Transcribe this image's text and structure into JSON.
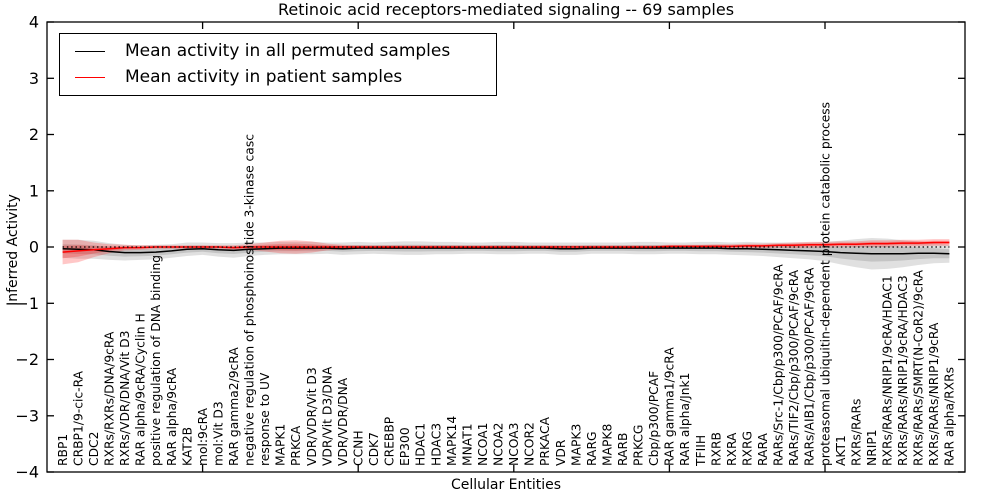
{
  "figure": {
    "title": "Retinoic acid receptors-mediated signaling -- 69 samples",
    "xlabel": "Cellular Entities",
    "ylabel": "Inferred Activity",
    "legend": [
      {
        "label": "Mean activity in all permuted samples",
        "color": "#000000"
      },
      {
        "label": "Mean activity in patient samples",
        "color": "#ff0000"
      }
    ]
  },
  "chart_data": {
    "type": "line",
    "title": "Retinoic acid receptors-mediated signaling -- 69 samples",
    "xlabel": "Cellular Entities",
    "ylabel": "Inferred Activity",
    "ylim": [
      -4,
      4
    ],
    "yticks": [
      -4,
      -3,
      -2,
      -1,
      0,
      1,
      2,
      3,
      4
    ],
    "xlim": [
      0,
      59
    ],
    "xticks": [
      10,
      20,
      30,
      40,
      50
    ],
    "grid": false,
    "legend_position": "upper left",
    "zero_line": {
      "y": 0,
      "style": "dotted",
      "color": "#000000"
    },
    "categories": [
      "RBP1",
      "CRBP1/9-cic-RA",
      "CDC2",
      "RXRs/RXRs/DNA/9cRA",
      "RXRs/VDR/DNA/Vit D3",
      "RAR alpha/9cRA/Cyclin H",
      "positive regulation of DNA binding",
      "RAR alpha/9cRA",
      "KAT2B",
      "mol:9cRA",
      "mol:Vit D3",
      "RAR gamma2/9cRA",
      "negative regulation of phosphoinositide 3-kinase casc",
      "response to UV",
      "MAPK1",
      "PRKCA",
      "VDR/VDR/Vit D3",
      "VDR/Vit D3/DNA",
      "VDR/VDR/DNA",
      "CCNH",
      "CDK7",
      "CREBBP",
      "EP300",
      "HDAC1",
      "HDAC3",
      "MAPK14",
      "MNAT1",
      "NCOA1",
      "NCOA2",
      "NCOA3",
      "NCOR2",
      "PRKACA",
      "VDR",
      "MAPK3",
      "RARG",
      "MAPK8",
      "RARB",
      "PRKCG",
      "Cbp/p300/PCAF",
      "RAR gamma1/9cRA",
      "RAR alpha/Jnk1",
      "TFIIH",
      "RXRB",
      "RXRA",
      "RXRG",
      "RARA",
      "RARs/Src-1/Cbp/p300/PCAF/9cRA",
      "RARs/TIF2/Cbp/p300/PCAF/9cRA",
      "RARs/AIB1/Cbp/p300/PCAF/9cRA",
      "proteasomal ubiquitin-dependent protein catabolic process",
      "AKT1",
      "RXRs/RARs",
      "NRIP1",
      "RXRs/RARs/NRIP1/9cRA/HDAC1",
      "RXRs/RARs/NRIP1/9cRA/HDAC3",
      "RXRs/RARs/SMRT(N-CoR2)/9cRA",
      "RXRs/RARs/NRIP1/9cRA",
      "RAR alpha/RXRs"
    ],
    "series": [
      {
        "name": "Mean activity in all permuted samples",
        "color": "#000000",
        "band_color": "rgba(0,0,0,0.12)",
        "values": [
          -0.03,
          -0.04,
          -0.05,
          -0.08,
          -0.1,
          -0.1,
          -0.09,
          -0.07,
          -0.04,
          -0.03,
          -0.05,
          -0.06,
          -0.04,
          -0.03,
          -0.02,
          -0.02,
          -0.02,
          -0.02,
          -0.03,
          -0.02,
          -0.02,
          -0.02,
          -0.02,
          -0.02,
          -0.02,
          -0.02,
          -0.02,
          -0.02,
          -0.02,
          -0.02,
          -0.02,
          -0.02,
          -0.03,
          -0.03,
          -0.02,
          -0.02,
          -0.02,
          -0.02,
          -0.02,
          -0.02,
          -0.02,
          -0.02,
          -0.02,
          -0.03,
          -0.03,
          -0.04,
          -0.05,
          -0.06,
          -0.07,
          -0.08,
          -0.1,
          -0.11,
          -0.12,
          -0.12,
          -0.12,
          -0.11,
          -0.11,
          -0.12
        ],
        "band": [
          0.16,
          0.17,
          0.16,
          0.15,
          0.14,
          0.13,
          0.13,
          0.12,
          0.12,
          0.11,
          0.12,
          0.13,
          0.12,
          0.11,
          0.11,
          0.11,
          0.11,
          0.1,
          0.11,
          0.11,
          0.1,
          0.11,
          0.12,
          0.12,
          0.11,
          0.11,
          0.1,
          0.1,
          0.11,
          0.11,
          0.1,
          0.1,
          0.11,
          0.11,
          0.1,
          0.1,
          0.1,
          0.11,
          0.11,
          0.1,
          0.1,
          0.11,
          0.11,
          0.11,
          0.12,
          0.12,
          0.13,
          0.14,
          0.15,
          0.17,
          0.21,
          0.25,
          0.28,
          0.27,
          0.24,
          0.21,
          0.18,
          0.16
        ]
      },
      {
        "name": "Mean activity in patient samples",
        "color": "#ff0000",
        "band_color": "rgba(255,0,0,0.22)",
        "values": [
          -0.09,
          -0.07,
          -0.05,
          -0.03,
          -0.01,
          -0.01,
          0,
          0,
          0,
          0,
          0,
          -0.01,
          0,
          0,
          0,
          0,
          0,
          0,
          0,
          0,
          0,
          0,
          0,
          0,
          0,
          0,
          0,
          0,
          0,
          0,
          0,
          0,
          0,
          0,
          0,
          0,
          0,
          0,
          0,
          0.01,
          0.01,
          0.01,
          0.01,
          0.01,
          0.02,
          0.02,
          0.03,
          0.03,
          0.04,
          0.04,
          0.05,
          0.05,
          0.06,
          0.06,
          0.07,
          0.07,
          0.08,
          0.08
        ],
        "band": [
          0.22,
          0.2,
          0.13,
          0.08,
          0.05,
          0.04,
          0.03,
          0.03,
          0.03,
          0.03,
          0.03,
          0.04,
          0.05,
          0.08,
          0.11,
          0.12,
          0.1,
          0.06,
          0.04,
          0.03,
          0.03,
          0.03,
          0.03,
          0.03,
          0.03,
          0.03,
          0.03,
          0.03,
          0.03,
          0.03,
          0.03,
          0.03,
          0.03,
          0.03,
          0.03,
          0.03,
          0.03,
          0.03,
          0.03,
          0.03,
          0.03,
          0.03,
          0.04,
          0.04,
          0.04,
          0.04,
          0.04,
          0.05,
          0.05,
          0.05,
          0.05,
          0.05,
          0.06,
          0.06,
          0.06,
          0.06,
          0.06,
          0.06
        ]
      }
    ]
  },
  "colors": {
    "axis": "#000000",
    "background": "#ffffff",
    "permuted_line": "#000000",
    "patient_line": "#ff0000"
  }
}
